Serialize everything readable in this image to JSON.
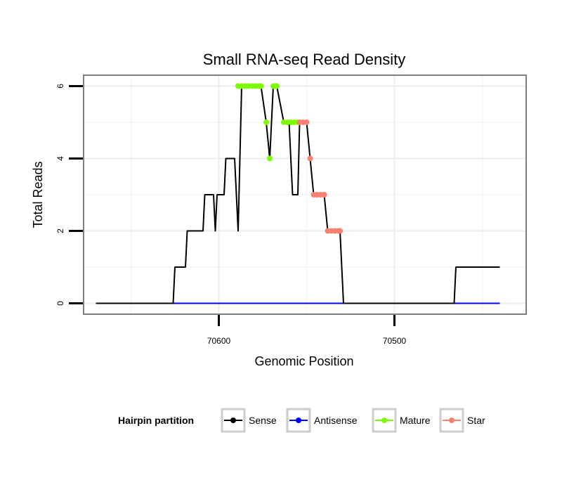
{
  "chart_data": {
    "type": "line",
    "title": "Small RNA-seq Read Density",
    "xlabel": "Genomic Position",
    "ylabel": "Total Reads",
    "x_reversed": true,
    "xlim": [
      70677,
      70425
    ],
    "ylim": [
      -0.3,
      6.3
    ],
    "x_ticks": [
      70600,
      70500
    ],
    "y_ticks": [
      0,
      2,
      4,
      6
    ],
    "grid": true,
    "legend": {
      "title": "Hairpin partition",
      "position": "bottom",
      "entries": [
        {
          "name": "Sense",
          "color": "#000000"
        },
        {
          "name": "Antisense",
          "color": "#0000ff"
        },
        {
          "name": "Mature",
          "color": "#7cfc00"
        },
        {
          "name": "Star",
          "color": "#fa8072"
        }
      ]
    },
    "series": [
      {
        "name": "Sense",
        "color": "#000000",
        "style": "line",
        "points": [
          [
            70670,
            0
          ],
          [
            70626,
            0
          ],
          [
            70625,
            1
          ],
          [
            70619,
            1
          ],
          [
            70618,
            2
          ],
          [
            70609,
            2
          ],
          [
            70608,
            3
          ],
          [
            70603,
            3
          ],
          [
            70602,
            2
          ],
          [
            70601,
            3
          ],
          [
            70597,
            3
          ],
          [
            70596,
            4
          ],
          [
            70591,
            4
          ],
          [
            70590,
            3
          ],
          [
            70589,
            2
          ],
          [
            70587,
            6
          ],
          [
            70576,
            6
          ],
          [
            70573,
            5
          ],
          [
            70571,
            4
          ],
          [
            70569,
            6
          ],
          [
            70567,
            6
          ],
          [
            70563,
            5
          ],
          [
            70560,
            5
          ],
          [
            70558,
            3
          ],
          [
            70555,
            3
          ],
          [
            70554,
            5
          ],
          [
            70550,
            5
          ],
          [
            70548,
            4
          ],
          [
            70546,
            3
          ],
          [
            70540,
            3
          ],
          [
            70538,
            2
          ],
          [
            70531,
            2
          ],
          [
            70529,
            0
          ],
          [
            70466,
            0
          ],
          [
            70465,
            1
          ],
          [
            70440,
            1
          ]
        ]
      },
      {
        "name": "Antisense",
        "color": "#0000ff",
        "style": "line",
        "points": [
          [
            70670,
            0
          ],
          [
            70440,
            0
          ]
        ]
      },
      {
        "name": "Mature",
        "color": "#7cfc00",
        "style": "points",
        "points": [
          [
            70589,
            6
          ],
          [
            70587,
            6
          ],
          [
            70585,
            6
          ],
          [
            70583,
            6
          ],
          [
            70581,
            6
          ],
          [
            70579,
            6
          ],
          [
            70577,
            6
          ],
          [
            70576,
            6
          ],
          [
            70573,
            5
          ],
          [
            70571,
            4
          ],
          [
            70569,
            6
          ],
          [
            70568,
            6
          ],
          [
            70567,
            6
          ],
          [
            70563,
            5
          ],
          [
            70561,
            5
          ],
          [
            70559,
            5
          ],
          [
            70557,
            5
          ],
          [
            70555,
            5
          ]
        ]
      },
      {
        "name": "Star",
        "color": "#fa8072",
        "style": "points",
        "points": [
          [
            70554,
            5
          ],
          [
            70552,
            5
          ],
          [
            70550,
            5
          ],
          [
            70548,
            4
          ],
          [
            70546,
            3
          ],
          [
            70544,
            3
          ],
          [
            70542,
            3
          ],
          [
            70540,
            3
          ],
          [
            70538,
            2
          ],
          [
            70536,
            2
          ],
          [
            70534,
            2
          ],
          [
            70532,
            2
          ],
          [
            70531,
            2
          ]
        ]
      }
    ]
  }
}
